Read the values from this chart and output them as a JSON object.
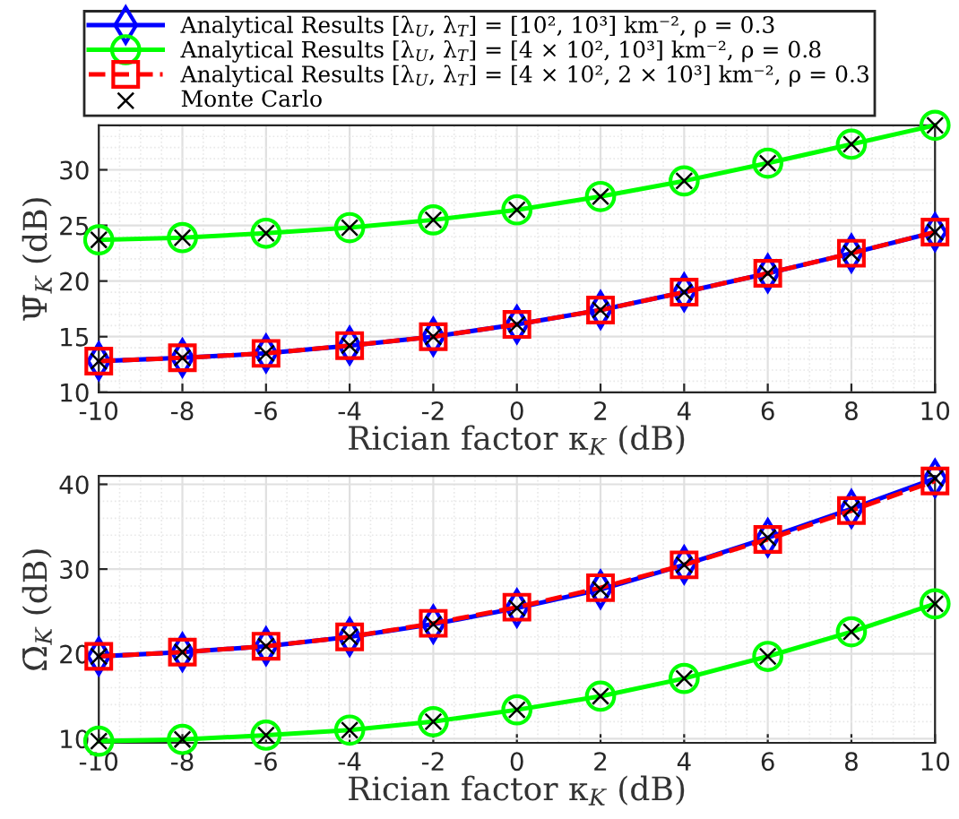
{
  "chart_data": [
    {
      "type": "line",
      "xlabel": "Rician factor κ$_{K}$ (dB)",
      "ylabel": "Ψ̄$_{K}$ (dB)",
      "x": [
        -10,
        -8,
        -6,
        -4,
        -2,
        0,
        2,
        4,
        6,
        8,
        10
      ],
      "xlim": [
        -10,
        10
      ],
      "xticks": [
        -10,
        -8,
        -6,
        -4,
        -2,
        0,
        2,
        4,
        6,
        8,
        10
      ],
      "ylim": [
        10,
        34
      ],
      "yticks": [
        10,
        15,
        20,
        25,
        30
      ],
      "grid": true,
      "legend": "top",
      "series": [
        {
          "name": "Analytical Results [λ$_{U}$, λ$_{T}$] = [10², 10³] km⁻², ρ = 0.3",
          "color": "#0000ff",
          "marker": "diamond",
          "line_style": "solid",
          "values": [
            12.8,
            13.1,
            13.5,
            14.2,
            15.0,
            16.1,
            17.4,
            19.0,
            20.7,
            22.5,
            24.4
          ]
        },
        {
          "name": "Analytical Results [λ$_{U}$, λ$_{T}$] = [4 × 10², 10³] km⁻², ρ = 0.8",
          "color": "#00ff00",
          "marker": "circle",
          "line_style": "solid",
          "values": [
            23.7,
            23.9,
            24.3,
            24.8,
            25.5,
            26.4,
            27.6,
            29.0,
            30.6,
            32.3,
            34.0
          ]
        },
        {
          "name": "Analytical Results [λ$_{U}$, λ$_{T}$] = [4 × 10², 2 × 10³] km⁻², ρ = 0.3",
          "color": "#ff0000",
          "marker": "square",
          "line_style": "dashed",
          "values": [
            12.8,
            13.1,
            13.5,
            14.2,
            15.0,
            16.1,
            17.4,
            19.0,
            20.7,
            22.5,
            24.4
          ]
        },
        {
          "name": "Monte Carlo",
          "type": "scatter",
          "color": "#000000",
          "marker": "cross",
          "x": [
            -10,
            -8,
            -6,
            -4,
            -2,
            0,
            2,
            4,
            6,
            8,
            10,
            -10,
            -8,
            -6,
            -4,
            -2,
            0,
            2,
            4,
            6,
            8,
            10
          ],
          "values": [
            12.8,
            13.1,
            13.5,
            14.2,
            15.0,
            16.1,
            17.4,
            19.0,
            20.7,
            22.5,
            24.4,
            23.7,
            23.9,
            24.3,
            24.8,
            25.5,
            26.4,
            27.6,
            29.0,
            30.6,
            32.3,
            34.0
          ]
        }
      ]
    },
    {
      "type": "line",
      "xlabel": "Rician factor κ$_{K}$ (dB)",
      "ylabel": "Ω̄$_{K}$ (dB)",
      "x": [
        -10,
        -8,
        -6,
        -4,
        -2,
        0,
        2,
        4,
        6,
        8,
        10
      ],
      "xlim": [
        -10,
        10
      ],
      "xticks": [
        -10,
        -8,
        -6,
        -4,
        -2,
        0,
        2,
        4,
        6,
        8,
        10
      ],
      "ylim": [
        9.5,
        41
      ],
      "yticks": [
        10,
        20,
        30,
        40
      ],
      "grid": true,
      "series": [
        {
          "color": "#0000ff",
          "marker": "diamond",
          "line_style": "solid",
          "values": [
            19.7,
            20.2,
            20.9,
            22.0,
            23.5,
            25.4,
            27.6,
            30.5,
            33.7,
            37.1,
            40.7
          ]
        },
        {
          "color": "#00ff00",
          "marker": "circle",
          "line_style": "solid",
          "values": [
            9.7,
            9.9,
            10.4,
            11.0,
            12.0,
            13.4,
            15.0,
            17.1,
            19.7,
            22.6,
            25.9
          ]
        },
        {
          "color": "#ff0000",
          "marker": "square",
          "line_style": "dashed",
          "values": [
            19.7,
            20.2,
            20.9,
            22.0,
            23.6,
            25.5,
            27.8,
            30.5,
            33.5,
            36.9,
            40.4
          ]
        },
        {
          "type": "scatter",
          "color": "#000000",
          "marker": "cross",
          "x": [
            -10,
            -8,
            -6,
            -4,
            -2,
            0,
            2,
            4,
            6,
            8,
            10,
            -10,
            -8,
            -6,
            -4,
            -2,
            0,
            2,
            4,
            6,
            8,
            10
          ],
          "values": [
            19.7,
            20.2,
            20.9,
            22.0,
            23.5,
            25.4,
            27.6,
            30.5,
            33.7,
            37.1,
            40.7,
            9.7,
            9.9,
            10.4,
            11.0,
            12.0,
            13.4,
            15.0,
            17.1,
            19.7,
            22.6,
            25.9
          ]
        }
      ]
    }
  ]
}
